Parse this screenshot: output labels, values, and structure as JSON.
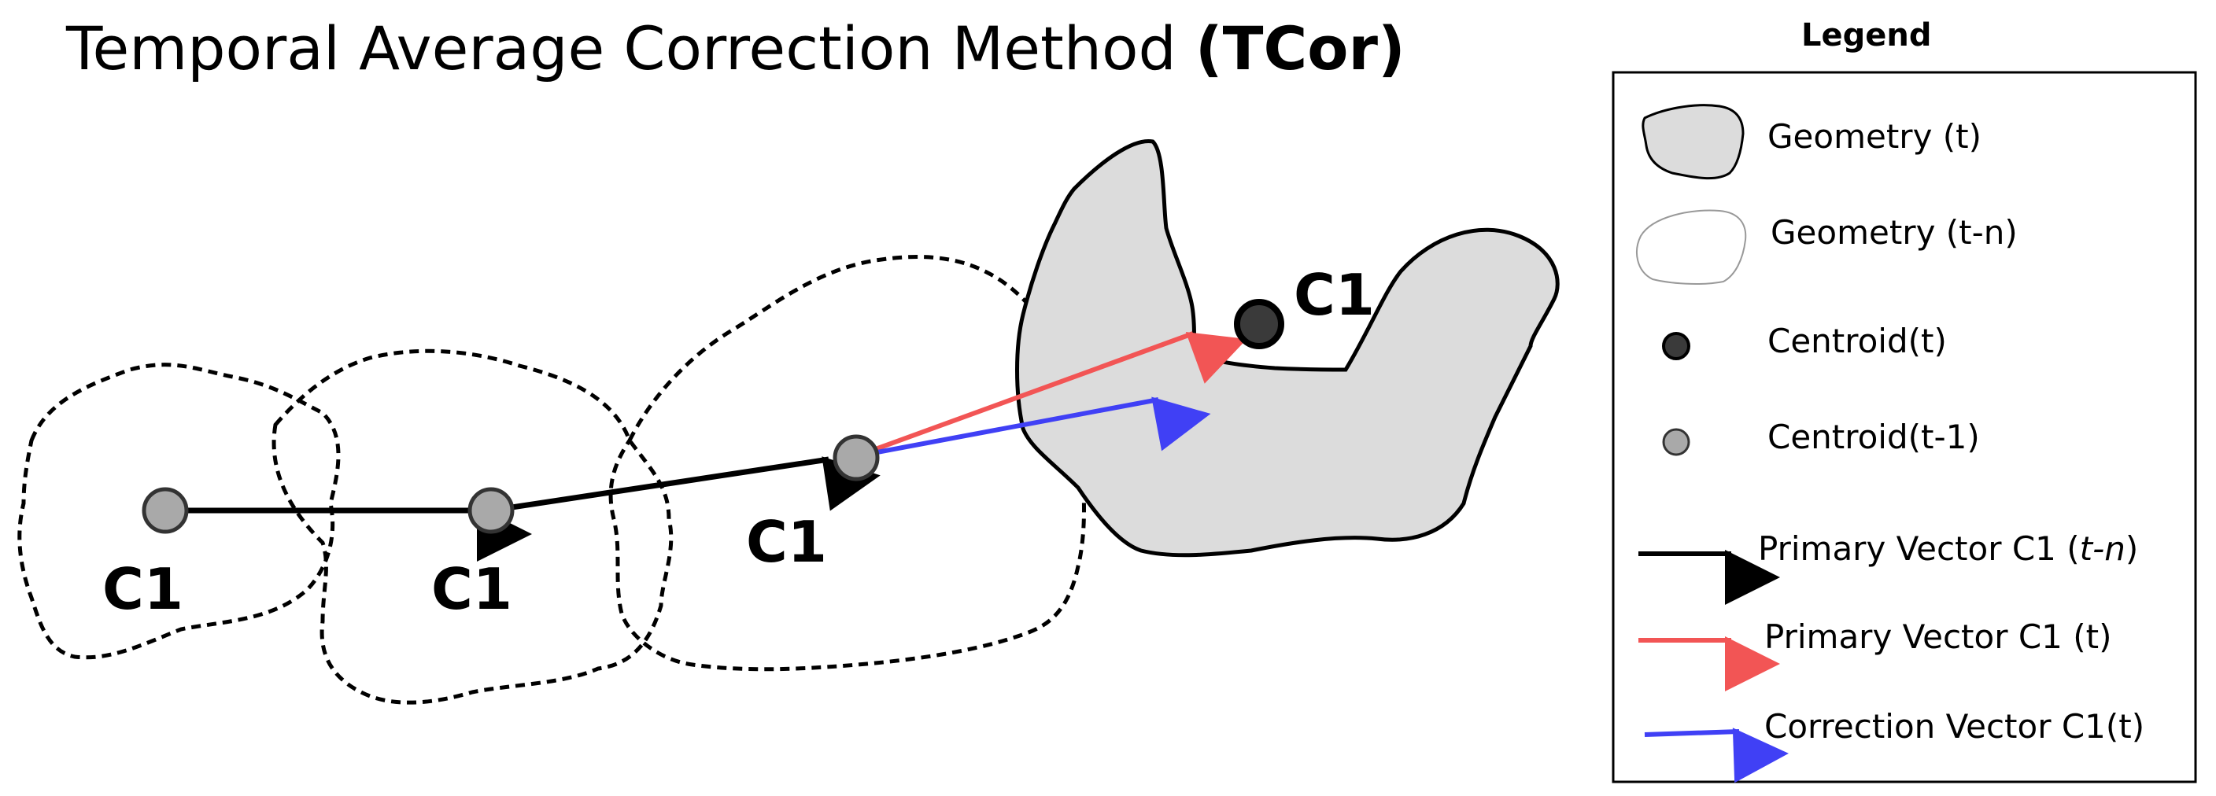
{
  "title": {
    "main": "Temporal Average Correction Method ",
    "bold": "(TCor)"
  },
  "centroid_labels": [
    "C1",
    "C1",
    "C1",
    "C1"
  ],
  "legend": {
    "title": "Legend",
    "items": [
      {
        "label": "Geometry (t)"
      },
      {
        "label": "Geometry (t-n)"
      },
      {
        "label": "Centroid(t)"
      },
      {
        "label": "Centroid(t-1)"
      },
      {
        "label_prefix": "Primary Vector C1 (",
        "label_italic": "t-n",
        "label_suffix": ")"
      },
      {
        "label": "Primary Vector C1 (t)"
      },
      {
        "label": "Correction Vector C1(t)"
      }
    ]
  },
  "colors": {
    "geometry_fill": "#dcdcdc",
    "centroid_prev": "#a9a9a9",
    "centroid_current": "#3a3a3a",
    "primary_vector": "#000000",
    "primary_vector_t": "#f25555",
    "correction_vector": "#4040f5"
  }
}
